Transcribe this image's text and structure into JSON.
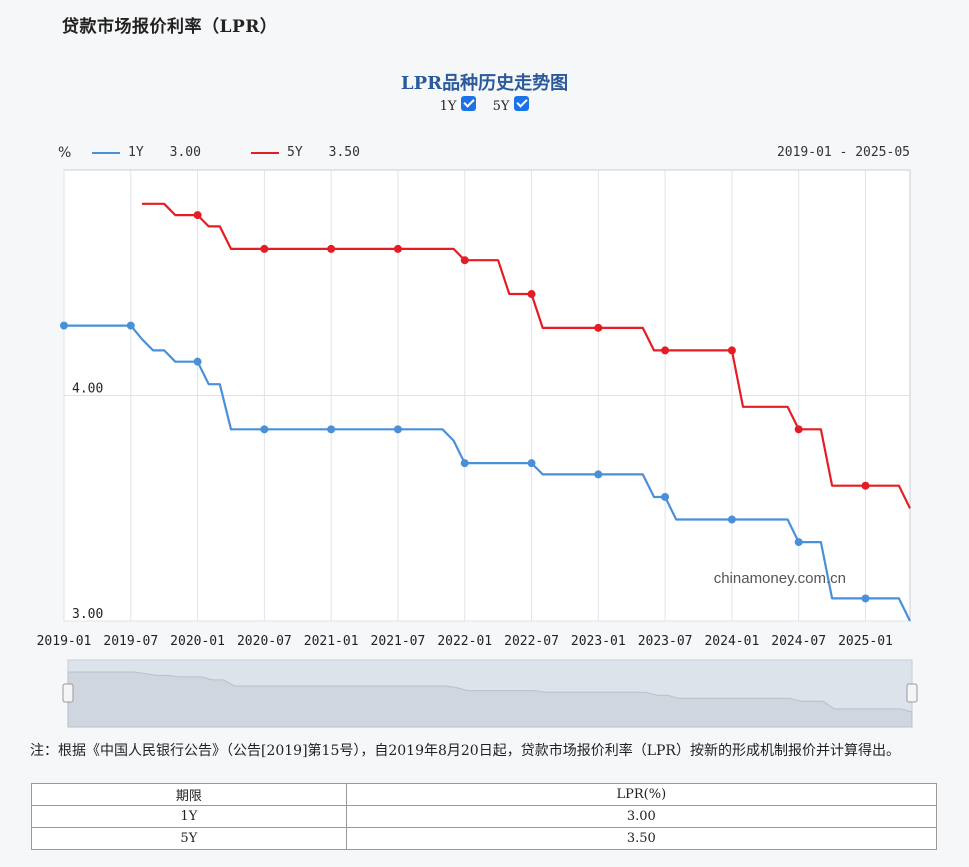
{
  "page_title": "贷款市场报价利率（LPR）",
  "chart_title": "LPR品种历史走势图",
  "toggles": [
    {
      "label": "1Y",
      "checked": true
    },
    {
      "label": "5Y",
      "checked": true
    }
  ],
  "legend": {
    "unit": "%",
    "entries": [
      {
        "name": "1Y",
        "value": "3.00",
        "color": "#4a90d9"
      },
      {
        "name": "5Y",
        "value": "3.50",
        "color": "#e51c23"
      }
    ],
    "date_range": "2019-01 - 2025-05"
  },
  "watermark": "chinamoney.com.cn",
  "chart_data": {
    "type": "line",
    "x_tick_labels": [
      "2019-01",
      "2019-07",
      "2020-01",
      "2020-07",
      "2021-01",
      "2021-07",
      "2022-01",
      "2022-07",
      "2023-01",
      "2023-07",
      "2024-01",
      "2024-07",
      "2025-01"
    ],
    "y_tick_labels": [
      "4.00",
      "3.00"
    ],
    "ylim": [
      3.0,
      5.0
    ],
    "x_range": [
      "2019-01",
      "2025-05"
    ],
    "series": [
      {
        "name": "1Y",
        "color": "#4a90d9",
        "points": [
          [
            "2019-01",
            4.31
          ],
          [
            "2019-07",
            4.31
          ],
          [
            "2019-08",
            4.25
          ],
          [
            "2019-09",
            4.2
          ],
          [
            "2019-10",
            4.2
          ],
          [
            "2019-11",
            4.15
          ],
          [
            "2019-12",
            4.15
          ],
          [
            "2020-01",
            4.15
          ],
          [
            "2020-02",
            4.05
          ],
          [
            "2020-03",
            4.05
          ],
          [
            "2020-04",
            3.85
          ],
          [
            "2020-05",
            3.85
          ],
          [
            "2020-06",
            3.85
          ],
          [
            "2020-07",
            3.85
          ],
          [
            "2021-01",
            3.85
          ],
          [
            "2021-07",
            3.85
          ],
          [
            "2021-11",
            3.85
          ],
          [
            "2021-12",
            3.8
          ],
          [
            "2022-01",
            3.7
          ],
          [
            "2022-02",
            3.7
          ],
          [
            "2022-07",
            3.7
          ],
          [
            "2022-08",
            3.65
          ],
          [
            "2022-09",
            3.65
          ],
          [
            "2023-01",
            3.65
          ],
          [
            "2023-05",
            3.65
          ],
          [
            "2023-06",
            3.55
          ],
          [
            "2023-07",
            3.55
          ],
          [
            "2023-08",
            3.45
          ],
          [
            "2023-09",
            3.45
          ],
          [
            "2024-01",
            3.45
          ],
          [
            "2024-06",
            3.45
          ],
          [
            "2024-07",
            3.35
          ],
          [
            "2024-08",
            3.35
          ],
          [
            "2024-09",
            3.35
          ],
          [
            "2024-10",
            3.1
          ],
          [
            "2024-11",
            3.1
          ],
          [
            "2025-01",
            3.1
          ],
          [
            "2025-04",
            3.1
          ],
          [
            "2025-05",
            3.0
          ]
        ],
        "marked": [
          "2019-01",
          "2019-07",
          "2020-01",
          "2020-07",
          "2021-01",
          "2021-07",
          "2022-01",
          "2022-07",
          "2023-01",
          "2023-07",
          "2024-01",
          "2024-07",
          "2025-01"
        ]
      },
      {
        "name": "5Y",
        "color": "#e51c23",
        "points": [
          [
            "2019-08",
            4.85
          ],
          [
            "2019-09",
            4.85
          ],
          [
            "2019-10",
            4.85
          ],
          [
            "2019-11",
            4.8
          ],
          [
            "2019-12",
            4.8
          ],
          [
            "2020-01",
            4.8
          ],
          [
            "2020-02",
            4.75
          ],
          [
            "2020-03",
            4.75
          ],
          [
            "2020-04",
            4.65
          ],
          [
            "2020-05",
            4.65
          ],
          [
            "2020-06",
            4.65
          ],
          [
            "2020-07",
            4.65
          ],
          [
            "2021-01",
            4.65
          ],
          [
            "2021-07",
            4.65
          ],
          [
            "2021-12",
            4.65
          ],
          [
            "2022-01",
            4.6
          ],
          [
            "2022-02",
            4.6
          ],
          [
            "2022-04",
            4.6
          ],
          [
            "2022-05",
            4.45
          ],
          [
            "2022-06",
            4.45
          ],
          [
            "2022-07",
            4.45
          ],
          [
            "2022-08",
            4.3
          ],
          [
            "2022-09",
            4.3
          ],
          [
            "2023-01",
            4.3
          ],
          [
            "2023-05",
            4.3
          ],
          [
            "2023-06",
            4.2
          ],
          [
            "2023-07",
            4.2
          ],
          [
            "2024-01",
            4.2
          ],
          [
            "2024-02",
            3.95
          ],
          [
            "2024-03",
            3.95
          ],
          [
            "2024-06",
            3.95
          ],
          [
            "2024-07",
            3.85
          ],
          [
            "2024-08",
            3.85
          ],
          [
            "2024-09",
            3.85
          ],
          [
            "2024-10",
            3.6
          ],
          [
            "2024-11",
            3.6
          ],
          [
            "2025-01",
            3.6
          ],
          [
            "2025-04",
            3.6
          ],
          [
            "2025-05",
            3.5
          ]
        ],
        "marked": [
          "2020-01",
          "2020-07",
          "2021-01",
          "2021-07",
          "2022-01",
          "2022-07",
          "2023-01",
          "2023-07",
          "2024-01",
          "2024-07",
          "2025-01"
        ]
      }
    ],
    "grid": true
  },
  "note": "注：根据《中国人民银行公告》（公告[2019]第15号），自2019年8月20日起，贷款市场报价利率（LPR）按新的形成机制报价并计算得出。",
  "table": {
    "headers": [
      "期限",
      "LPR(%)"
    ],
    "rows": [
      [
        "1Y",
        "3.00"
      ],
      [
        "5Y",
        "3.50"
      ]
    ]
  }
}
